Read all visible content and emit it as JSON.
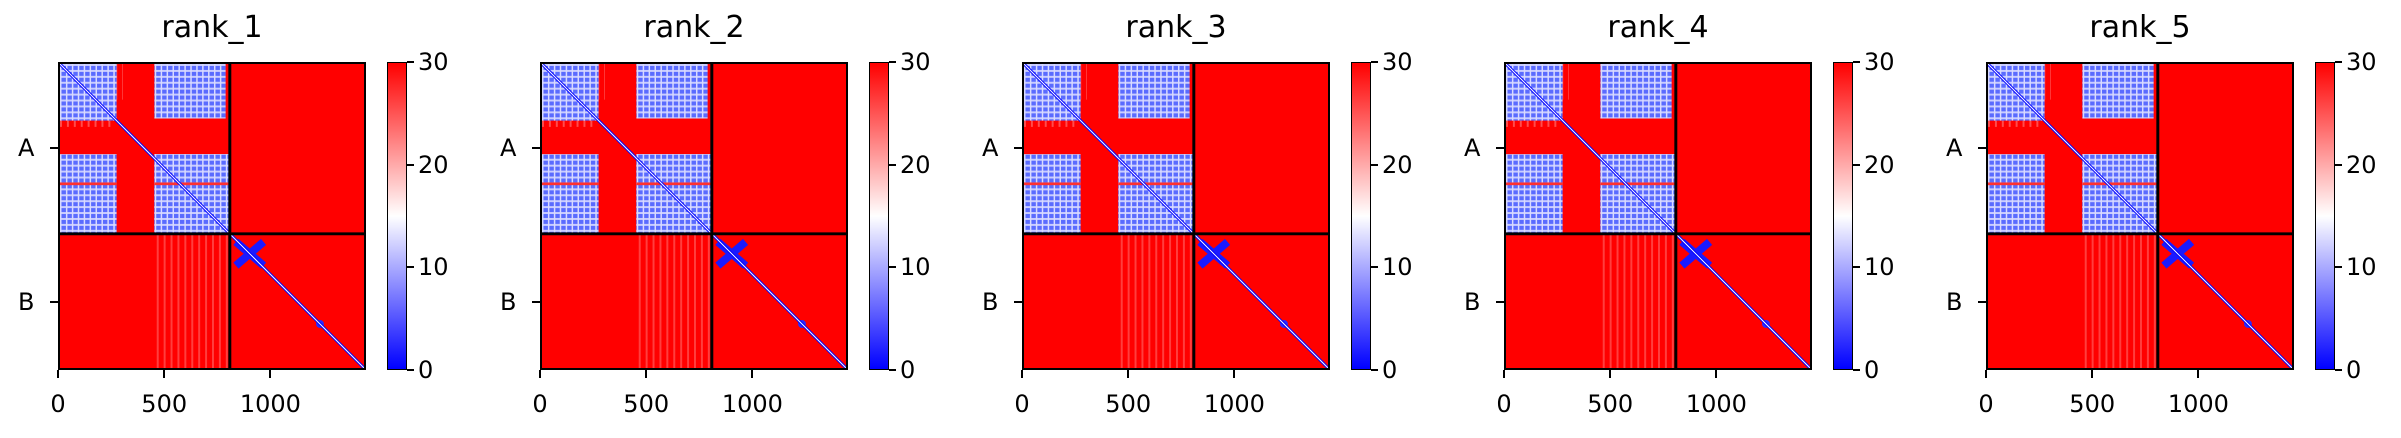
{
  "chart_data": [
    {
      "type": "heatmap",
      "title": "rank_1",
      "chains": [
        "A",
        "B"
      ],
      "chain_break": 810,
      "x_ticks": [
        "0",
        "500",
        "1000"
      ],
      "x_tick_values": [
        0,
        500,
        1000
      ],
      "xlim": [
        0,
        1450
      ],
      "ylim": [
        0,
        1450
      ],
      "colorbar": {
        "range": [
          0,
          30
        ],
        "ticks": [
          "0",
          "10",
          "20",
          "30"
        ],
        "colors": [
          "#0000ff",
          "#ffffff",
          "#ff0000"
        ]
      }
    },
    {
      "type": "heatmap",
      "title": "rank_2",
      "chains": [
        "A",
        "B"
      ],
      "chain_break": 810,
      "x_ticks": [
        "0",
        "500",
        "1000"
      ],
      "x_tick_values": [
        0,
        500,
        1000
      ],
      "xlim": [
        0,
        1450
      ],
      "ylim": [
        0,
        1450
      ],
      "colorbar": {
        "range": [
          0,
          30
        ],
        "ticks": [
          "0",
          "10",
          "20",
          "30"
        ],
        "colors": [
          "#0000ff",
          "#ffffff",
          "#ff0000"
        ]
      }
    },
    {
      "type": "heatmap",
      "title": "rank_3",
      "chains": [
        "A",
        "B"
      ],
      "chain_break": 810,
      "x_ticks": [
        "0",
        "500",
        "1000"
      ],
      "x_tick_values": [
        0,
        500,
        1000
      ],
      "xlim": [
        0,
        1450
      ],
      "ylim": [
        0,
        1450
      ],
      "colorbar": {
        "range": [
          0,
          30
        ],
        "ticks": [
          "0",
          "10",
          "20",
          "30"
        ],
        "colors": [
          "#0000ff",
          "#ffffff",
          "#ff0000"
        ]
      }
    },
    {
      "type": "heatmap",
      "title": "rank_4",
      "chains": [
        "A",
        "B"
      ],
      "chain_break": 810,
      "x_ticks": [
        "0",
        "500",
        "1000"
      ],
      "x_tick_values": [
        0,
        500,
        1000
      ],
      "xlim": [
        0,
        1450
      ],
      "ylim": [
        0,
        1450
      ],
      "colorbar": {
        "range": [
          0,
          30
        ],
        "ticks": [
          "0",
          "10",
          "20",
          "30"
        ],
        "colors": [
          "#0000ff",
          "#ffffff",
          "#ff0000"
        ]
      }
    },
    {
      "type": "heatmap",
      "title": "rank_5",
      "chains": [
        "A",
        "B"
      ],
      "chain_break": 810,
      "x_ticks": [
        "0",
        "500",
        "1000"
      ],
      "x_tick_values": [
        0,
        500,
        1000
      ],
      "xlim": [
        0,
        1450
      ],
      "ylim": [
        0,
        1450
      ],
      "colorbar": {
        "range": [
          0,
          30
        ],
        "ticks": [
          "0",
          "10",
          "20",
          "30"
        ],
        "colors": [
          "#0000ff",
          "#ffffff",
          "#ff0000"
        ]
      }
    }
  ]
}
